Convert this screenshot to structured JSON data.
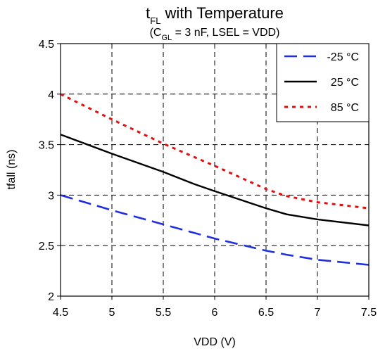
{
  "chart_data": {
    "type": "line",
    "title": {
      "base": "t",
      "sub": "FL",
      "rest": " with Temperature"
    },
    "subtitle": {
      "open": "(C",
      "sub": "GL",
      "rest": " = 3 nF, LSEL = VDD)"
    },
    "xlabel": "VDD (V)",
    "ylabel": "tfall (ns)",
    "xlim": [
      4.5,
      7.5
    ],
    "ylim": [
      2,
      4.5
    ],
    "x_ticks": [
      "4.5",
      "5",
      "5.5",
      "6",
      "6.5",
      "7",
      "7.5"
    ],
    "y_ticks": [
      "2",
      "2.5",
      "3",
      "3.5",
      "4",
      "4.5"
    ],
    "grid": true,
    "legend_position": "top-right",
    "series": [
      {
        "name": "-25 °C",
        "color": "#1f2fe0",
        "style": "long-dash",
        "x": [
          4.5,
          5.0,
          5.5,
          6.0,
          6.5,
          6.7,
          7.0,
          7.2,
          7.5
        ],
        "y": [
          3.0,
          2.85,
          2.71,
          2.57,
          2.45,
          2.41,
          2.36,
          2.34,
          2.31
        ]
      },
      {
        "name": "25 °C",
        "color": "#000000",
        "style": "solid",
        "x": [
          4.5,
          5.0,
          5.5,
          5.8,
          6.0,
          6.5,
          6.7,
          7.0,
          7.5
        ],
        "y": [
          3.6,
          3.41,
          3.23,
          3.11,
          3.04,
          2.87,
          2.81,
          2.76,
          2.7
        ]
      },
      {
        "name": "85 °C",
        "color": "#e01010",
        "style": "dotted",
        "x": [
          4.5,
          5.0,
          5.5,
          6.0,
          6.5,
          6.7,
          7.0,
          7.5
        ],
        "y": [
          4.0,
          3.75,
          3.51,
          3.29,
          3.06,
          2.99,
          2.93,
          2.87
        ]
      }
    ]
  }
}
